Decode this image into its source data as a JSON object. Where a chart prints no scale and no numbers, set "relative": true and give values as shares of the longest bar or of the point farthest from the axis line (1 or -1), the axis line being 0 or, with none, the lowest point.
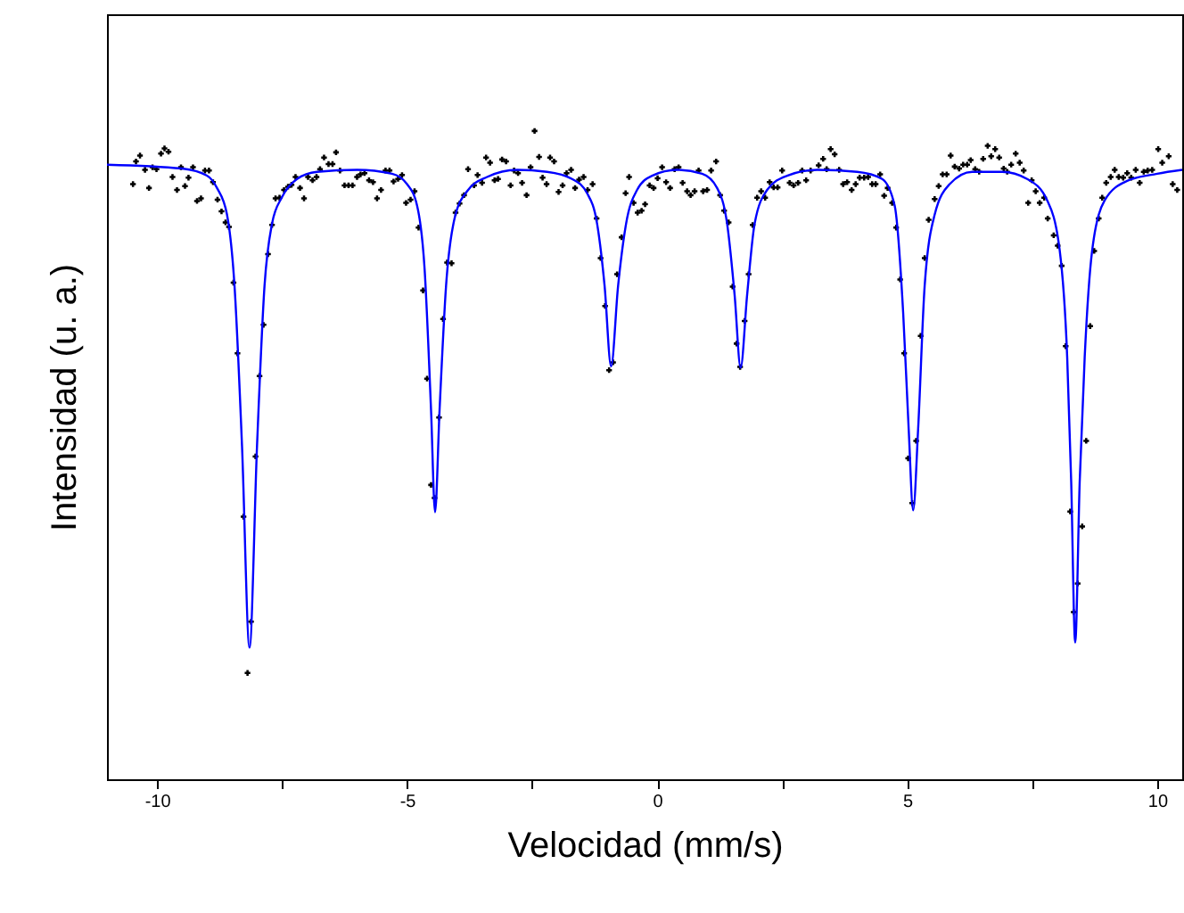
{
  "chart_data": {
    "type": "scatter",
    "xlabel": "Velocidad (mm/s)",
    "ylabel": "Intensidad (u. a.)",
    "relative": true,
    "xlim": [
      -11,
      10.5
    ],
    "xticks": [
      -10,
      {
        "value": -7.5,
        "label": null
      },
      -5,
      {
        "value": -2.5,
        "label": null
      },
      0,
      {
        "value": 2.5,
        "label": null
      },
      5,
      {
        "value": 7.5,
        "label": null
      },
      10
    ],
    "series": [
      {
        "color": "#000000",
        "marker": "cross",
        "x": [
          -10.48,
          -10.42,
          -10.34,
          -10.24,
          -10.16,
          -10.09,
          -10.01,
          -9.92,
          -9.85,
          -9.77,
          -9.69,
          -9.6,
          -9.52,
          -9.44,
          -9.37,
          -9.28,
          -9.2,
          -9.12,
          -9.04,
          -8.96,
          -8.88,
          -8.79,
          -8.71,
          -8.63,
          -8.56,
          -8.47,
          -8.39,
          -8.27,
          -8.19,
          -8.12,
          -8.03,
          -7.95,
          -7.87,
          -7.78,
          -7.7,
          -7.63,
          -7.55,
          -7.46,
          -7.38,
          -7.31,
          -7.23,
          -7.14,
          -7.06,
          -6.98,
          -6.89,
          -6.81,
          -6.74,
          -6.66,
          -6.57,
          -6.49,
          -6.42,
          -6.34,
          -6.25,
          -6.17,
          -6.09,
          -6.0,
          -5.93,
          -5.85,
          -5.76,
          -5.68,
          -5.6,
          -5.52,
          -5.43,
          -5.35,
          -5.27,
          -5.18,
          -5.1,
          -5.02,
          -4.93,
          -4.85,
          -4.77,
          -4.68,
          -4.6,
          -4.52,
          -4.45,
          -4.36,
          -4.28,
          -4.2,
          -4.11,
          -4.03,
          -3.95,
          -3.86,
          -3.78,
          -3.66,
          -3.59,
          -3.5,
          -3.42,
          -3.34,
          -3.25,
          -3.18,
          -3.1,
          -3.02,
          -2.93,
          -2.86,
          -2.78,
          -2.7,
          -2.61,
          -2.53,
          -2.45,
          -2.36,
          -2.29,
          -2.21,
          -2.14,
          -2.06,
          -1.97,
          -1.89,
          -1.81,
          -1.72,
          -1.64,
          -1.56,
          -1.47,
          -1.39,
          -1.29,
          -1.21,
          -1.13,
          -1.04,
          -0.96,
          -0.88,
          -0.8,
          -0.71,
          -0.63,
          -0.56,
          -0.47,
          -0.39,
          -0.31,
          -0.24,
          -0.15,
          -0.07,
          0.01,
          0.1,
          0.18,
          0.26,
          0.35,
          0.43,
          0.51,
          0.6,
          0.67,
          0.75,
          0.83,
          0.92,
          1.0,
          1.08,
          1.18,
          1.26,
          1.34,
          1.43,
          1.51,
          1.59,
          1.66,
          1.75,
          1.83,
          1.91,
          2.0,
          2.08,
          2.16,
          2.25,
          2.33,
          2.41,
          2.5,
          2.65,
          2.73,
          2.82,
          2.9,
          2.98,
          3.07,
          3.23,
          3.32,
          3.39,
          3.47,
          3.55,
          3.64,
          3.72,
          3.8,
          3.89,
          3.97,
          4.05,
          4.14,
          4.22,
          4.3,
          4.37,
          4.46,
          4.54,
          4.61,
          4.7,
          4.78,
          4.86,
          4.94,
          5.02,
          5.1,
          5.18,
          5.27,
          5.35,
          5.43,
          5.55,
          5.63,
          5.71,
          5.79,
          5.87,
          5.95,
          6.04,
          6.12,
          6.2,
          6.27,
          6.36,
          6.44,
          6.52,
          6.61,
          6.68,
          6.76,
          6.84,
          6.93,
          7.0,
          7.08,
          7.17,
          7.25,
          7.33,
          7.42,
          7.49,
          7.57,
          7.65,
          7.74,
          7.81,
          7.93,
          8.01,
          8.09,
          8.17,
          8.26,
          8.33,
          8.41,
          8.5,
          8.58,
          8.66,
          8.74,
          8.83,
          8.9,
          8.98,
          9.07,
          9.15,
          9.23,
          9.32,
          9.4,
          9.48,
          9.57,
          9.65,
          9.73,
          9.81,
          9.9,
          10.02,
          10.1,
          10.23,
          10.31,
          10.4
        ],
        "values": [
          0.918,
          0.953,
          0.962,
          0.94,
          0.912,
          0.944,
          0.941,
          0.965,
          0.973,
          0.968,
          0.929,
          0.909,
          0.944,
          0.915,
          0.928,
          0.944,
          0.892,
          0.896,
          0.939,
          0.939,
          0.921,
          0.894,
          0.876,
          0.859,
          0.852,
          0.766,
          0.657,
          0.405,
          0.164,
          0.243,
          0.498,
          0.622,
          0.701,
          0.81,
          0.855,
          0.896,
          0.897,
          0.909,
          0.914,
          0.917,
          0.929,
          0.912,
          0.896,
          0.929,
          0.924,
          0.929,
          0.941,
          0.959,
          0.949,
          0.949,
          0.967,
          0.939,
          0.916,
          0.916,
          0.916,
          0.929,
          0.933,
          0.935,
          0.924,
          0.921,
          0.896,
          0.909,
          0.939,
          0.939,
          0.922,
          0.926,
          0.932,
          0.889,
          0.894,
          0.907,
          0.851,
          0.754,
          0.618,
          0.454,
          0.434,
          0.558,
          0.71,
          0.797,
          0.796,
          0.874,
          0.888,
          0.901,
          0.941,
          0.916,
          0.932,
          0.92,
          0.959,
          0.951,
          0.924,
          0.926,
          0.956,
          0.953,
          0.916,
          0.939,
          0.935,
          0.92,
          0.901,
          0.944,
          1.0,
          0.96,
          0.928,
          0.918,
          0.959,
          0.953,
          0.906,
          0.916,
          0.935,
          0.94,
          0.912,
          0.925,
          0.929,
          0.909,
          0.918,
          0.865,
          0.804,
          0.73,
          0.631,
          0.643,
          0.779,
          0.836,
          0.904,
          0.929,
          0.889,
          0.874,
          0.877,
          0.887,
          0.916,
          0.912,
          0.927,
          0.944,
          0.921,
          0.912,
          0.941,
          0.944,
          0.92,
          0.907,
          0.901,
          0.907,
          0.939,
          0.907,
          0.909,
          0.939,
          0.953,
          0.901,
          0.877,
          0.859,
          0.76,
          0.672,
          0.636,
          0.707,
          0.779,
          0.855,
          0.897,
          0.907,
          0.897,
          0.921,
          0.913,
          0.913,
          0.939,
          0.92,
          0.916,
          0.92,
          0.939,
          0.924,
          0.939,
          0.947,
          0.957,
          0.941,
          0.972,
          0.964,
          0.94,
          0.918,
          0.921,
          0.909,
          0.918,
          0.928,
          0.928,
          0.929,
          0.918,
          0.918,
          0.933,
          0.9,
          0.912,
          0.889,
          0.851,
          0.771,
          0.657,
          0.495,
          0.426,
          0.522,
          0.684,
          0.804,
          0.863,
          0.895,
          0.915,
          0.933,
          0.933,
          0.962,
          0.945,
          0.942,
          0.948,
          0.948,
          0.955,
          0.941,
          0.937,
          0.957,
          0.977,
          0.961,
          0.972,
          0.959,
          0.942,
          0.937,
          0.948,
          0.965,
          0.951,
          0.939,
          0.889,
          0.924,
          0.907,
          0.889,
          0.897,
          0.865,
          0.839,
          0.823,
          0.792,
          0.668,
          0.413,
          0.258,
          0.302,
          0.39,
          0.522,
          0.699,
          0.815,
          0.865,
          0.897,
          0.92,
          0.929,
          0.94,
          0.929,
          0.928,
          0.935,
          0.928,
          0.94,
          0.92,
          0.937,
          0.939,
          0.94,
          0.972,
          0.951,
          0.961,
          0.918,
          0.909
        ]
      },
      {
        "type": "line",
        "color": "#0000ff",
        "x": [
          -11,
          -9.5,
          -9,
          -8.8,
          -8.6,
          -8.45,
          -8.3,
          -8.15,
          -8.0,
          -7.85,
          -7.7,
          -7.5,
          -7.2,
          -6.8,
          -6,
          -5.3,
          -5.0,
          -4.8,
          -4.65,
          -4.52,
          -4.44,
          -4.35,
          -4.22,
          -4.05,
          -3.8,
          -3.4,
          -2.8,
          -2.2,
          -1.7,
          -1.4,
          -1.2,
          -1.05,
          -0.92,
          -0.78,
          -0.62,
          -0.4,
          -0.1,
          0.4,
          0.9,
          1.2,
          1.4,
          1.55,
          1.67,
          1.8,
          1.95,
          2.2,
          2.6,
          3.2,
          4.0,
          4.5,
          4.75,
          4.92,
          5.03,
          5.12,
          5.22,
          5.35,
          5.55,
          5.85,
          6.3,
          6.9,
          7.4,
          7.8,
          8.05,
          8.2,
          8.28,
          8.36,
          8.45,
          8.55,
          8.7,
          8.95,
          9.4,
          10,
          10.5
        ],
        "values": [
          0.948,
          0.942,
          0.931,
          0.912,
          0.871,
          0.761,
          0.514,
          0.203,
          0.514,
          0.761,
          0.857,
          0.898,
          0.926,
          0.937,
          0.94,
          0.934,
          0.918,
          0.885,
          0.788,
          0.569,
          0.412,
          0.569,
          0.761,
          0.865,
          0.907,
          0.929,
          0.94,
          0.937,
          0.926,
          0.904,
          0.857,
          0.761,
          0.637,
          0.761,
          0.857,
          0.909,
          0.931,
          0.94,
          0.934,
          0.912,
          0.857,
          0.747,
          0.635,
          0.747,
          0.857,
          0.909,
          0.931,
          0.94,
          0.937,
          0.926,
          0.885,
          0.72,
          0.541,
          0.415,
          0.541,
          0.761,
          0.871,
          0.918,
          0.937,
          0.937,
          0.926,
          0.893,
          0.816,
          0.651,
          0.459,
          0.211,
          0.459,
          0.651,
          0.816,
          0.893,
          0.923,
          0.934,
          0.94
        ]
      }
    ]
  }
}
